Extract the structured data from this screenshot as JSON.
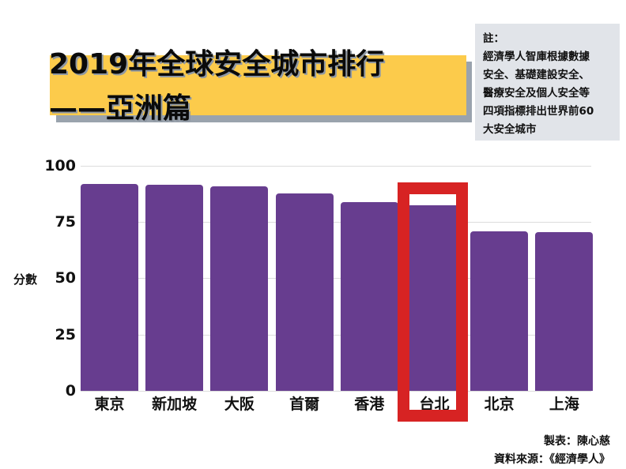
{
  "title": {
    "line1": "2019年全球安全城市排行",
    "line2": "——亞洲篇",
    "box_color": "#fccb4b",
    "shadow_color": "#9aa3ad"
  },
  "note": {
    "lines": [
      "註：",
      "經濟學人智庫根據數據",
      "安全、基礎建設安全、",
      "醫療安全及個人安全等",
      "四項指標排出世界前60",
      "大安全城市"
    ]
  },
  "chart_data": {
    "type": "bar",
    "title": "2019年全球安全城市排行——亞洲篇",
    "xlabel": "",
    "ylabel": "分數",
    "ylim": [
      0,
      100
    ],
    "yticks": [
      0,
      25,
      50,
      75,
      100
    ],
    "grid": true,
    "categories": [
      "東京",
      "新加坡",
      "大阪",
      "首爾",
      "香港",
      "台北",
      "北京",
      "上海"
    ],
    "values": [
      92.0,
      91.5,
      90.9,
      87.7,
      83.7,
      82.4,
      70.8,
      70.4
    ],
    "bar_color": "#673d8f",
    "highlight": {
      "category": "台北",
      "color": "#d72323"
    },
    "annotations": [
      "註：經濟學人智庫根據數據安全、基礎建設安全、醫療安全及個人安全等四項指標排出世界前60大安全城市"
    ]
  },
  "axis": {
    "ylabel": "分數",
    "ticks": [
      "100",
      "75",
      "50",
      "25",
      "0"
    ]
  },
  "credits": {
    "maker": "製表：陳心慈",
    "source": "資料來源：《經濟學人》"
  }
}
